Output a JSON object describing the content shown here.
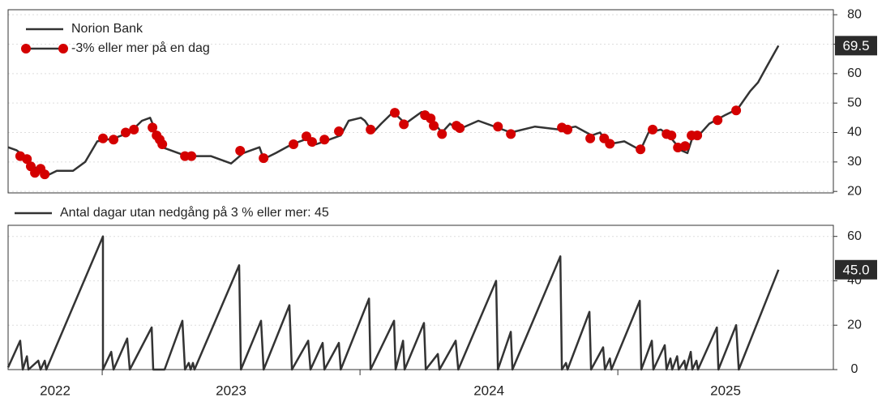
{
  "chart_data": [
    {
      "type": "line",
      "legend": "upper left",
      "grid": true,
      "xlim": [
        2022.635,
        2025.836
      ],
      "ylim": [
        19.5,
        81.7
      ],
      "yticks": [
        20,
        30,
        40,
        50,
        60,
        70,
        80
      ],
      "series": [
        {
          "name": "Norion Bank",
          "color": "#333333",
          "mode": "lines",
          "x": [
            2022.635,
            2022.667,
            2022.698,
            2022.73,
            2022.777,
            2022.824,
            2022.887,
            2022.934,
            2022.981,
            2023.044,
            2023.107,
            2023.154,
            2023.186,
            2023.233,
            2023.327,
            2023.421,
            2023.5,
            2023.547,
            2023.61,
            2023.626,
            2023.673,
            2023.736,
            2023.799,
            2023.83,
            2023.862,
            2023.925,
            2023.956,
            2024.003,
            2024.019,
            2024.05,
            2024.082,
            2024.129,
            2024.176,
            2024.223,
            2024.239,
            2024.27,
            2024.318,
            2024.349,
            2024.381,
            2024.459,
            2024.522,
            2024.585,
            2024.679,
            2024.774,
            2024.836,
            2024.899,
            2024.931,
            2024.962,
            2025.025,
            2025.088,
            2025.119,
            2025.167,
            2025.198,
            2025.245,
            2025.27,
            2025.292,
            2025.314,
            2025.355,
            2025.418,
            2025.465,
            2025.513,
            2025.544,
            2025.575,
            2025.607,
            2025.623
          ],
          "values": [
            35,
            34,
            32,
            29,
            25,
            27,
            27,
            30,
            37,
            38,
            40,
            44,
            45,
            35,
            32,
            32,
            29.5,
            33,
            35,
            31,
            33,
            36,
            38,
            36,
            37,
            39,
            44,
            45,
            44,
            40,
            43,
            47,
            43,
            46,
            47,
            45,
            40,
            43,
            41,
            44,
            42,
            40,
            42,
            41,
            42,
            39,
            40,
            36,
            37,
            34,
            40,
            41,
            39,
            34,
            33,
            39,
            39,
            43,
            46,
            48,
            54,
            57,
            62,
            67,
            69.5
          ],
          "value_labels": [
            null,
            null,
            null,
            null,
            null,
            null,
            null,
            null,
            null,
            null,
            null,
            null,
            null,
            null,
            null,
            null,
            null,
            null,
            null,
            null,
            null,
            null,
            null,
            null,
            null,
            null,
            null,
            null,
            null,
            null,
            null,
            null,
            null,
            null,
            null,
            null,
            null,
            null,
            null,
            null,
            null,
            null,
            null,
            null,
            null,
            null,
            null,
            null,
            null,
            null,
            null,
            null,
            null,
            null,
            null,
            null,
            null,
            null,
            null,
            null,
            null,
            null,
            null,
            null,
            "69.5"
          ]
        },
        {
          "name": "-3% eller mer på en dag",
          "color": "#d40000",
          "mode": "markers",
          "x": [
            2022.682,
            2022.708,
            2022.723,
            2022.739,
            2022.761,
            2022.777,
            2023.003,
            2023.044,
            2023.091,
            2023.123,
            2023.195,
            2023.211,
            2023.223,
            2023.233,
            2023.321,
            2023.346,
            2023.535,
            2023.626,
            2023.742,
            2023.792,
            2023.814,
            2023.862,
            2023.918,
            2024.041,
            2024.135,
            2024.17,
            2024.252,
            2024.274,
            2024.286,
            2024.318,
            2024.374,
            2024.387,
            2024.535,
            2024.585,
            2024.783,
            2024.805,
            2024.893,
            2024.947,
            2024.969,
            2025.088,
            2025.135,
            2025.189,
            2025.208,
            2025.233,
            2025.261,
            2025.286,
            2025.308,
            2025.387,
            2025.459
          ],
          "values": [
            32,
            31,
            28.5,
            26.3,
            27.7,
            25.8,
            38,
            37.6,
            40,
            41,
            41.7,
            39,
            37.6,
            36,
            32,
            32,
            33.8,
            31.3,
            36,
            38.7,
            36.8,
            37.6,
            40.4,
            41,
            46.7,
            42.8,
            45.9,
            44.8,
            42.3,
            39.5,
            42.3,
            41.5,
            42,
            39.5,
            41.7,
            41,
            38,
            38,
            36.2,
            34.3,
            41,
            39.5,
            39,
            34.9,
            35.4,
            39,
            39,
            44.2,
            47.5
          ]
        }
      ]
    },
    {
      "type": "line",
      "legend": "above",
      "grid": true,
      "xlim": [
        2022.635,
        2025.836
      ],
      "ylim": [
        0,
        65
      ],
      "yticks": [
        0,
        20,
        40,
        60
      ],
      "xticks": [
        2023,
        2024,
        2025
      ],
      "xtick_labels": [
        {
          "value": 2022,
          "label": "2022"
        },
        {
          "value": 2023,
          "label": "2023"
        },
        {
          "value": 2024,
          "label": "2024"
        },
        {
          "value": 2025,
          "label": "2025"
        }
      ],
      "series": [
        {
          "name": "Antal dagar utan nedgång på 3 % eller mer: 45",
          "color": "#333333",
          "mode": "lines",
          "x": [
            2022.635,
            2022.682,
            2022.692,
            2022.708,
            2022.714,
            2022.752,
            2022.761,
            2022.777,
            2022.783,
            2023.003,
            2023.003,
            2023.035,
            2023.044,
            2023.097,
            2023.107,
            2023.192,
            2023.198,
            2023.242,
            2023.311,
            2023.321,
            2023.336,
            2023.343,
            2023.352,
            2023.358,
            2023.531,
            2023.538,
            2023.616,
            2023.626,
            2023.726,
            2023.736,
            2023.799,
            2023.808,
            2023.855,
            2023.862,
            2023.918,
            2023.925,
            2024.035,
            2024.041,
            2024.132,
            2024.138,
            2024.167,
            2024.173,
            2024.248,
            2024.255,
            2024.302,
            2024.308,
            2024.371,
            2024.381,
            2024.528,
            2024.535,
            2024.585,
            2024.591,
            2024.777,
            2024.783,
            2024.799,
            2024.805,
            2024.89,
            2024.896,
            2024.943,
            2024.95,
            2024.969,
            2024.975,
            2025.085,
            2025.091,
            2025.132,
            2025.138,
            2025.182,
            2025.189,
            2025.204,
            2025.211,
            2025.23,
            2025.236,
            2025.258,
            2025.264,
            2025.283,
            2025.289,
            2025.305,
            2025.311,
            2025.384,
            2025.39,
            2025.459,
            2025.469,
            2025.623
          ],
          "values": [
            1,
            13,
            0,
            6,
            0,
            4,
            0,
            4,
            0,
            60,
            0,
            8,
            0,
            14,
            0,
            19,
            0,
            0,
            22,
            0,
            3,
            0,
            3,
            0,
            47,
            0,
            22,
            0,
            29,
            0,
            13,
            0,
            12,
            0,
            12,
            0,
            32,
            0,
            22,
            0,
            13,
            0,
            21,
            0,
            7,
            0,
            13,
            0,
            40,
            0,
            17,
            0,
            51,
            0,
            3,
            0,
            26,
            0,
            10,
            0,
            5,
            0,
            31,
            0,
            13,
            0,
            11,
            0,
            5,
            0,
            6,
            0,
            4,
            0,
            8,
            0,
            4,
            0,
            19,
            0,
            20,
            0,
            45
          ],
          "value_labels": [
            null,
            null,
            null,
            null,
            null,
            null,
            null,
            null,
            null,
            null,
            null,
            null,
            null,
            null,
            null,
            null,
            null,
            null,
            null,
            null,
            null,
            null,
            null,
            null,
            null,
            null,
            null,
            null,
            null,
            null,
            null,
            null,
            null,
            null,
            null,
            null,
            null,
            null,
            null,
            null,
            null,
            null,
            null,
            null,
            null,
            null,
            null,
            null,
            null,
            null,
            null,
            null,
            null,
            null,
            null,
            null,
            null,
            null,
            null,
            null,
            null,
            null,
            null,
            null,
            null,
            null,
            null,
            null,
            null,
            null,
            null,
            null,
            null,
            null,
            null,
            null,
            null,
            null,
            null,
            null,
            null,
            null,
            "45.0"
          ]
        }
      ]
    }
  ]
}
